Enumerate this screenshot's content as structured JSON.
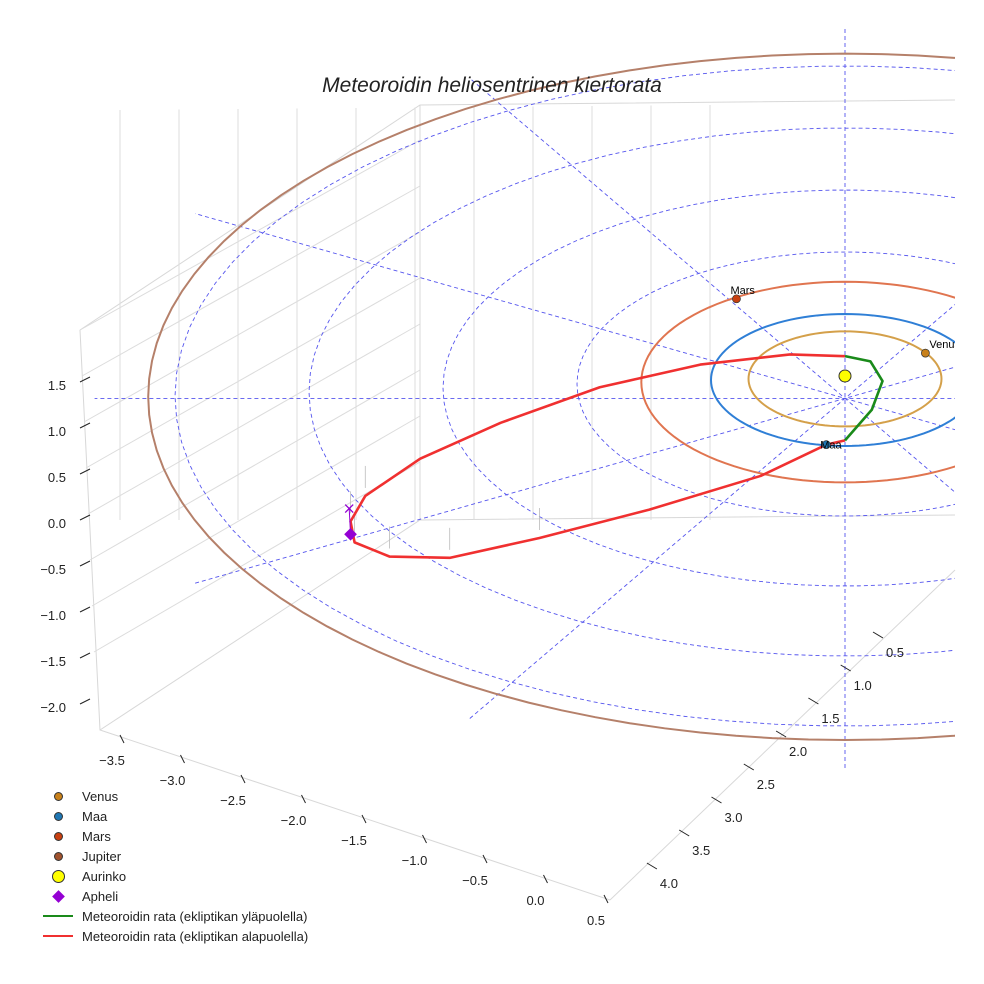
{
  "chart_data": {
    "type": "line",
    "title": "Meteoroidin heliosentrinen kiertorata",
    "projection": "3d",
    "z_ticks": [
      "1.5",
      "1.0",
      "0.5",
      "0.0",
      "−0.5",
      "−1.0",
      "−1.5",
      "−2.0"
    ],
    "x_ticks": [
      "−3.5",
      "−3.0",
      "−2.5",
      "−2.0",
      "−1.5",
      "−1.0",
      "−0.5",
      "0.0",
      "0.5"
    ],
    "y_ticks": [
      "0.5",
      "1.0",
      "1.5",
      "2.0",
      "2.5",
      "3.0",
      "3.5",
      "4.0"
    ],
    "zlim": [
      -2.0,
      1.5
    ],
    "ecliptic_grid_radii": [
      1,
      2,
      3,
      4,
      5
    ],
    "ecliptic_grid_angles_deg": [
      0,
      30,
      60,
      90,
      120,
      150
    ],
    "orbits": [
      {
        "name": "Venus",
        "a": 0.72,
        "color": "#d4a04a"
      },
      {
        "name": "Maa",
        "a": 1.0,
        "color": "#2f7fd6"
      },
      {
        "name": "Mars",
        "a": 1.52,
        "color": "#e07550"
      },
      {
        "name": "Jupiter",
        "a": 5.2,
        "color": "#b5806a"
      }
    ],
    "planets": [
      {
        "name": "Venus",
        "label": "Venus",
        "x": 0.6,
        "y": -0.39,
        "color": "#c8801a"
      },
      {
        "name": "Maa",
        "label": "Maa",
        "x": -0.14,
        "y": 0.98,
        "color": "#1f77b4"
      },
      {
        "name": "Mars",
        "label": "Mars",
        "x": -0.81,
        "y": -1.26,
        "color": "#c84010"
      }
    ],
    "sun": {
      "x": 0,
      "y": 0,
      "color": "#ffff00"
    },
    "aphelion": {
      "x": -3.69,
      "y": 2.14,
      "projection_x": -3.7,
      "projection_y": 1.76,
      "color": "#9400d3"
    },
    "meteoroid_above": {
      "color": "#1a8a1a",
      "points": [
        [
          0,
          -0.32
        ],
        [
          0.19,
          -0.24
        ],
        [
          0.28,
          0.06
        ],
        [
          0.2,
          0.48
        ],
        [
          0,
          0.92
        ]
      ]
    },
    "meteoroid_below": {
      "color": "#f03030",
      "points": [
        [
          0,
          0.92
        ],
        [
          -0.14,
          0.98
        ],
        [
          -0.63,
          1.42
        ],
        [
          -1.46,
          1.88
        ],
        [
          -2.28,
          2.26
        ],
        [
          -2.95,
          2.52
        ],
        [
          -3.4,
          2.48
        ],
        [
          -3.66,
          2.26
        ],
        [
          -3.69,
          1.95
        ],
        [
          -3.58,
          1.58
        ],
        [
          -3.17,
          1.05
        ],
        [
          -2.57,
          0.55
        ],
        [
          -1.83,
          0.06
        ],
        [
          -1.08,
          -0.24
        ],
        [
          -0.41,
          -0.36
        ],
        [
          0,
          -0.32
        ]
      ]
    },
    "legend": [
      {
        "label": "Venus",
        "kind": "dot",
        "color": "#c8801a"
      },
      {
        "label": "Maa",
        "kind": "dot",
        "color": "#1f77b4"
      },
      {
        "label": "Mars",
        "kind": "dot",
        "color": "#c84010"
      },
      {
        "label": "Jupiter",
        "kind": "dot",
        "color": "#a0522d"
      },
      {
        "label": "Aurinko",
        "kind": "big",
        "color": "#ffff00"
      },
      {
        "label": "Apheli",
        "kind": "dia",
        "color": "#9400d3"
      },
      {
        "label": "Meteoroidin rata (ekliptikan yläpuolella)",
        "kind": "line",
        "color": "#1a8a1a"
      },
      {
        "label": "Meteoroidin rata (ekliptikan alapuolella)",
        "kind": "line",
        "color": "#f03030"
      }
    ]
  }
}
